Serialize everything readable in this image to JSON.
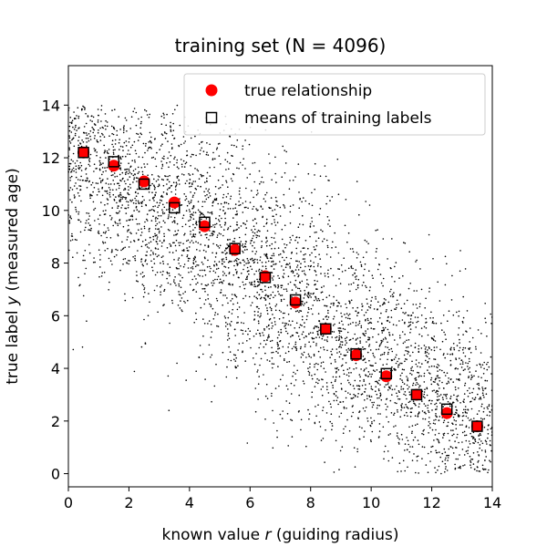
{
  "chart_data": {
    "type": "scatter",
    "title": "training set (N = 4096)",
    "xlabel_pre": "known value ",
    "xlabel_var": "r",
    "xlabel_post": " (guiding radius)",
    "ylabel_pre": "true label ",
    "ylabel_var": "y",
    "ylabel_post": " (measured age)",
    "xlim": [
      0,
      14
    ],
    "ylim": [
      -0.5,
      15.5
    ],
    "xticks": [
      0,
      2,
      4,
      6,
      8,
      10,
      12,
      14
    ],
    "yticks": [
      0,
      2,
      4,
      6,
      8,
      10,
      12,
      14
    ],
    "grid": false,
    "legend_position": "top-right",
    "scatter_cloud": {
      "n": 4096,
      "color": "#000000",
      "relation": "y = 12.5 - 0.8 r",
      "spread_y": 2.2,
      "y_range": [
        0,
        14
      ]
    },
    "series": [
      {
        "name": "true relationship",
        "marker": "circle",
        "color": "#ff0000",
        "x": [
          0.5,
          1.5,
          2.5,
          3.5,
          4.5,
          5.5,
          6.5,
          7.5,
          8.5,
          9.5,
          10.5,
          11.5,
          12.5,
          13.5
        ],
        "y": [
          12.2,
          11.7,
          11.1,
          10.3,
          9.4,
          8.5,
          7.5,
          6.5,
          5.5,
          4.5,
          3.7,
          3.0,
          2.3,
          1.8
        ]
      },
      {
        "name": "means of training labels",
        "marker": "square",
        "color": "#000000",
        "fill": "none",
        "x": [
          0.5,
          1.5,
          2.5,
          3.5,
          4.5,
          5.5,
          6.5,
          7.5,
          8.5,
          9.5,
          10.5,
          11.5,
          12.5,
          13.5
        ],
        "y": [
          12.2,
          11.85,
          11.0,
          10.1,
          9.55,
          8.55,
          7.45,
          6.6,
          5.5,
          4.55,
          3.8,
          3.0,
          2.45,
          1.8
        ]
      }
    ]
  }
}
